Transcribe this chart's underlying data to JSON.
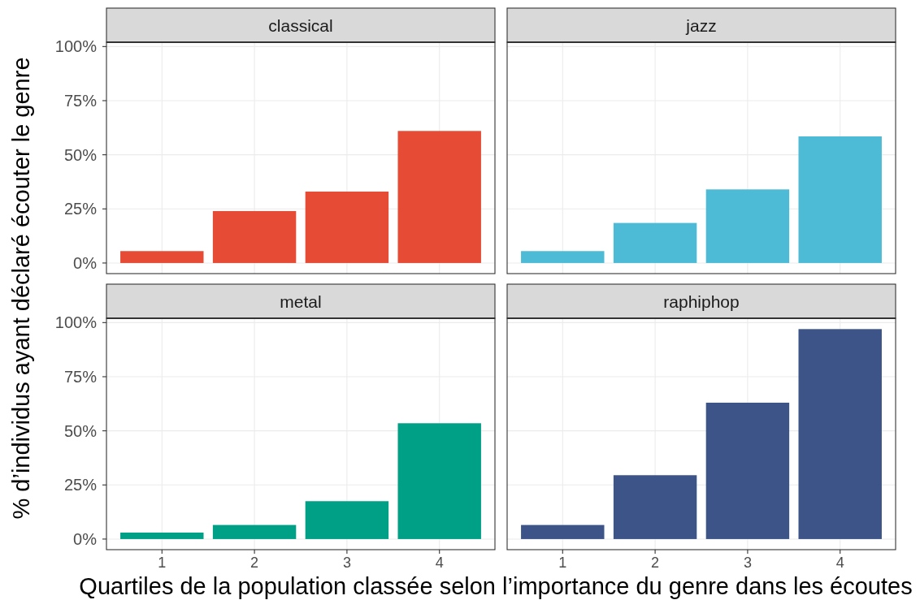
{
  "chart_data": [
    {
      "type": "bar",
      "title": "classical",
      "ylabel": "% d’individus ayant déclaré écouter le genre",
      "categories": [
        "1",
        "2",
        "3",
        "4"
      ],
      "values": [
        5.5,
        24,
        33,
        61
      ],
      "color": "#e64b35",
      "ylim": [
        -4.9,
        102
      ],
      "yticks": [
        {
          "value": 0,
          "label": "0%"
        },
        {
          "value": 25,
          "label": "25%"
        },
        {
          "value": 50,
          "label": "50%"
        },
        {
          "value": 75,
          "label": "75%"
        },
        {
          "value": 100,
          "label": "100%"
        }
      ],
      "grid": true,
      "tick_labels": "y"
    },
    {
      "type": "bar",
      "title": "jazz",
      "categories": [
        "1",
        "2",
        "3",
        "4"
      ],
      "values": [
        5.5,
        18.5,
        34,
        58.5
      ],
      "color": "#4dbbd5",
      "ylim": [
        -4.9,
        102
      ],
      "yticks": [
        0,
        25,
        50,
        75,
        100
      ],
      "grid": true,
      "tick_labels": false
    },
    {
      "type": "bar",
      "title": "metal",
      "xlabel": "Quartiles de la population classée selon l’importance du genre dans les écoutes",
      "categories": [
        "1",
        "2",
        "3",
        "4"
      ],
      "values": [
        3,
        6.5,
        17.5,
        53.5
      ],
      "color": "#00a087",
      "ylim": [
        -4.9,
        102
      ],
      "yticks": [
        {
          "value": 0,
          "label": "0%"
        },
        {
          "value": 25,
          "label": "25%"
        },
        {
          "value": 50,
          "label": "50%"
        },
        {
          "value": 75,
          "label": "75%"
        },
        {
          "value": 100,
          "label": "100%"
        }
      ],
      "grid": true
    },
    {
      "type": "bar",
      "title": "raphiphop",
      "categories": [
        "1",
        "2",
        "3",
        "4"
      ],
      "values": [
        6.5,
        29.5,
        63,
        97
      ],
      "color": "#3c5488",
      "ylim": [
        -4.9,
        102
      ],
      "yticks": [
        0,
        25,
        50,
        75,
        100
      ],
      "grid": true,
      "tick_labels": "x"
    }
  ]
}
